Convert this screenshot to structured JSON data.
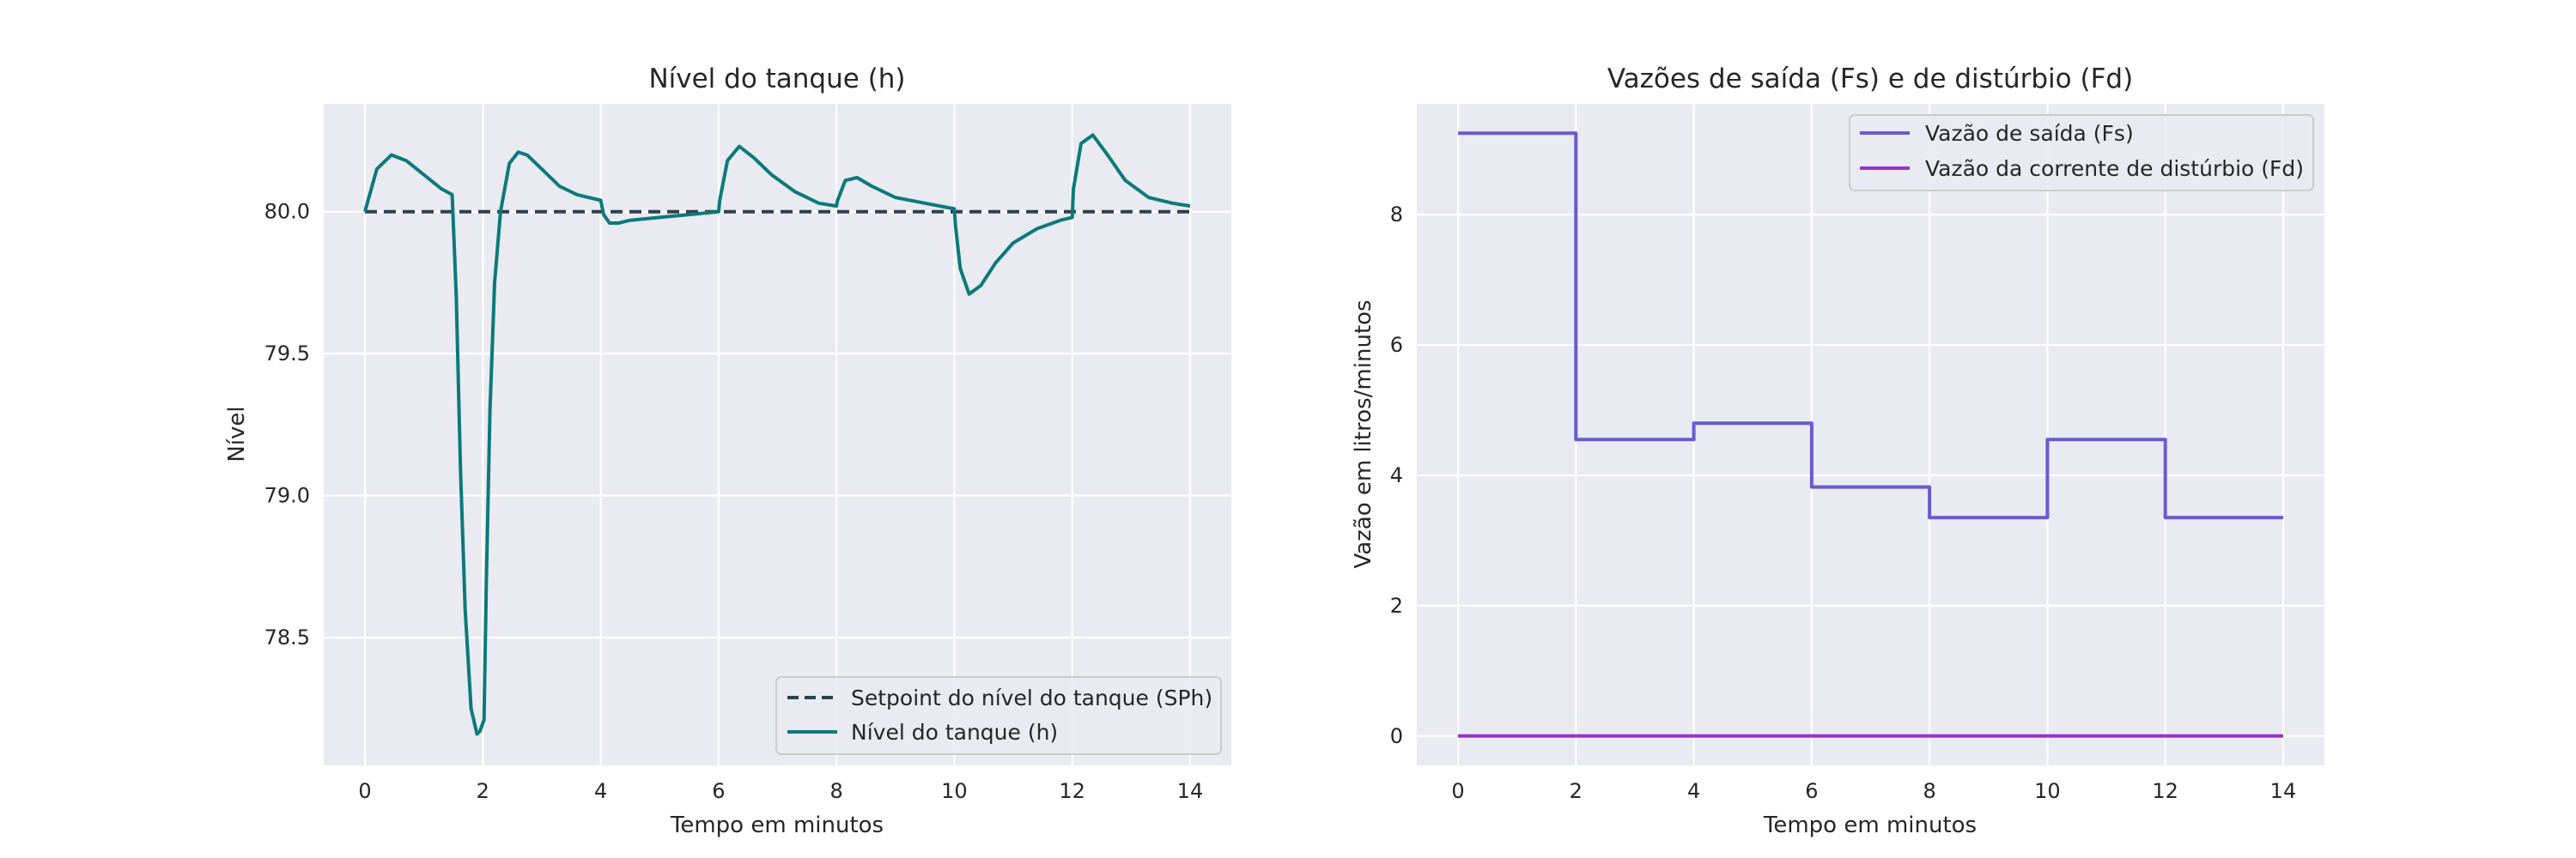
{
  "chart_data": [
    {
      "type": "line",
      "title": "Nível do tanque (h)",
      "xlabel": "Tempo em minutos",
      "ylabel": "Nível",
      "xlim": [
        -0.7,
        14.7
      ],
      "ylim": [
        78.05,
        80.38
      ],
      "xticks": [
        0,
        2,
        4,
        6,
        8,
        10,
        12,
        14
      ],
      "yticks": [
        78.5,
        79.0,
        79.5,
        80.0
      ],
      "ytick_labels": [
        "78.5",
        "79.0",
        "79.5",
        "80.0"
      ],
      "grid": true,
      "legend_position": "lower right",
      "series": [
        {
          "name": "Setpoint do nível do tanque (SPh)",
          "color": "#2f4050",
          "style": "dashed",
          "x": [
            0,
            14
          ],
          "y": [
            80.0,
            80.0
          ]
        },
        {
          "name": "Nível do tanque (h)",
          "color": "#0b7a7a",
          "style": "solid",
          "x": [
            0,
            0.2,
            0.45,
            0.7,
            1.0,
            1.3,
            1.48,
            1.55,
            1.62,
            1.7,
            1.8,
            1.9,
            1.95,
            2.02,
            2.06,
            2.12,
            2.2,
            2.3,
            2.45,
            2.6,
            2.75,
            3.0,
            3.3,
            3.6,
            4.0,
            4.05,
            4.15,
            4.3,
            4.5,
            5.0,
            5.5,
            6.0,
            6.02,
            6.15,
            6.35,
            6.6,
            6.9,
            7.3,
            7.7,
            8.0,
            8.02,
            8.15,
            8.35,
            8.6,
            9.0,
            9.5,
            10.0,
            10.02,
            10.1,
            10.25,
            10.45,
            10.7,
            11.0,
            11.4,
            11.8,
            12.0,
            12.02,
            12.15,
            12.35,
            12.6,
            12.9,
            13.3,
            13.7,
            14.0
          ],
          "y": [
            80.0,
            80.15,
            80.2,
            80.18,
            80.13,
            80.08,
            80.06,
            79.7,
            79.1,
            78.6,
            78.25,
            78.16,
            78.17,
            78.21,
            78.7,
            79.3,
            79.75,
            80.0,
            80.17,
            80.21,
            80.2,
            80.15,
            80.09,
            80.06,
            80.04,
            79.99,
            79.96,
            79.96,
            79.97,
            79.98,
            79.99,
            80.0,
            80.04,
            80.18,
            80.23,
            80.19,
            80.13,
            80.07,
            80.03,
            80.02,
            80.04,
            80.11,
            80.12,
            80.09,
            80.05,
            80.03,
            80.01,
            79.95,
            79.8,
            79.71,
            79.74,
            79.82,
            79.89,
            79.94,
            79.97,
            79.98,
            80.08,
            80.24,
            80.27,
            80.2,
            80.11,
            80.05,
            80.03,
            80.02
          ]
        }
      ]
    },
    {
      "type": "line",
      "title": "Vazões de saída (Fs) e de distúrbio (Fd)",
      "xlabel": "Tempo em minutos",
      "ylabel": "Vazão em litros/minutos",
      "xlim": [
        -0.7,
        14.7
      ],
      "ylim": [
        -0.45,
        9.7
      ],
      "xticks": [
        0,
        2,
        4,
        6,
        8,
        10,
        12,
        14
      ],
      "yticks": [
        0,
        2,
        4,
        6,
        8
      ],
      "ytick_labels": [
        "0",
        "2",
        "4",
        "6",
        "8"
      ],
      "grid": true,
      "legend_position": "upper right",
      "series": [
        {
          "name": "Vazão de saída (Fs)",
          "color": "#6a5acd",
          "style": "solid",
          "x": [
            0,
            2,
            2,
            4,
            4,
            6,
            6,
            8,
            8,
            10,
            10,
            12,
            12,
            14
          ],
          "y": [
            9.25,
            9.25,
            4.55,
            4.55,
            4.8,
            4.8,
            3.82,
            3.82,
            3.35,
            3.35,
            4.55,
            4.55,
            3.35,
            3.35
          ]
        },
        {
          "name": "Vazão da corrente de distúrbio (Fd)",
          "color": "#9932cc",
          "style": "solid",
          "x": [
            0,
            14
          ],
          "y": [
            0,
            0
          ]
        }
      ]
    }
  ]
}
